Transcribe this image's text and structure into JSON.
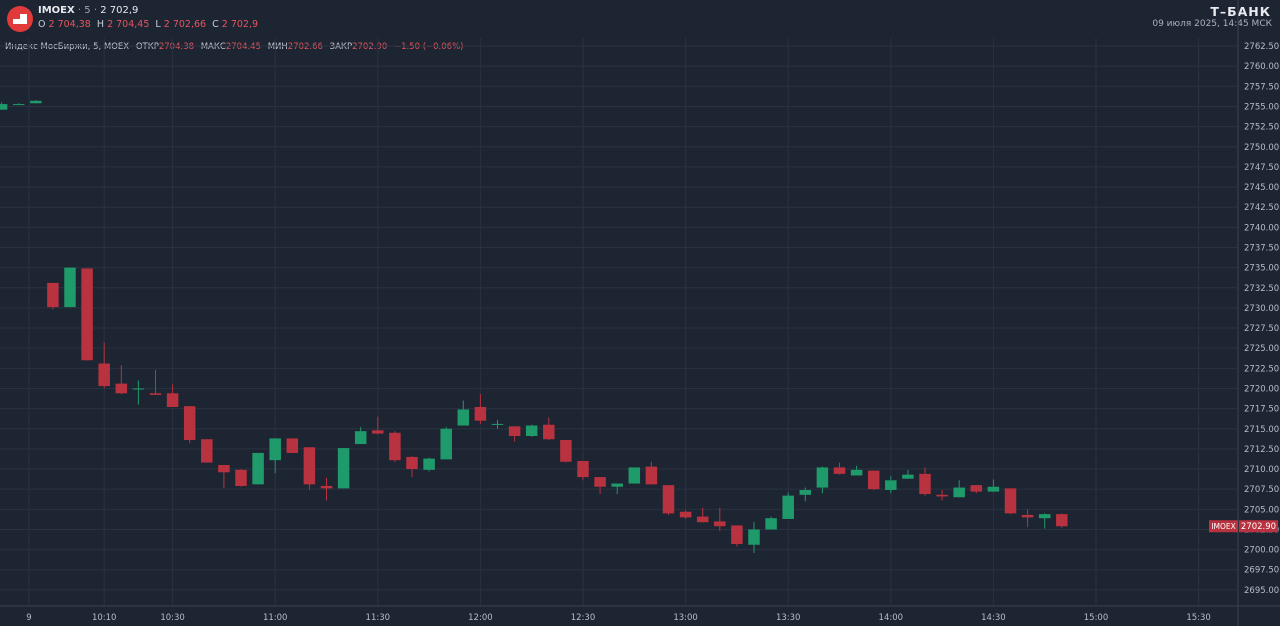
{
  "header": {
    "symbol": "IMOEX",
    "interval": "5",
    "last": "2 702,9",
    "o_label": "O",
    "o_value": "2 704,38",
    "h_label": "H",
    "h_value": "2 704,45",
    "l_label": "L",
    "l_value": "2 702,66",
    "c_label": "C",
    "c_value": "2 702,9",
    "brand": "Т–БАНК",
    "datetime": "09 июля 2025, 14:45 МСК"
  },
  "legend": {
    "name": "Индекс МосБиржи, 5, MOEX",
    "open_label": "ОТКР",
    "open_value": "2704.38",
    "high_label": "МАКС",
    "high_value": "2704.45",
    "low_label": "МИН",
    "low_value": "2702.66",
    "close_label": "ЗАКР",
    "close_value": "2702.90",
    "change": "−1.50 (−0.06%)"
  },
  "colors": {
    "background": "#1e2532",
    "grid": "#2a3140",
    "up": "#1f9a6a",
    "down": "#b8323f",
    "label_bg": "#b8323f"
  },
  "chart_data": {
    "type": "candlestick",
    "title": "",
    "xlabel": "",
    "ylabel": "",
    "ylim": [
      2693.0,
      2763.5
    ],
    "y_ticks": [
      "2762.50",
      "2760.00",
      "2757.50",
      "2755.00",
      "2752.50",
      "2750.00",
      "2747.50",
      "2745.00",
      "2742.50",
      "2740.00",
      "2737.50",
      "2735.00",
      "2732.50",
      "2730.00",
      "2727.50",
      "2725.00",
      "2722.50",
      "2720.00",
      "2717.50",
      "2715.00",
      "2712.50",
      "2710.00",
      "2707.50",
      "2705.00",
      "2702.50",
      "2700.00",
      "2697.50",
      "2695.00"
    ],
    "x_ticks": [
      {
        "label": "9",
        "index": 1.6
      },
      {
        "label": "10:10",
        "index": 6
      },
      {
        "label": "10:30",
        "index": 10
      },
      {
        "label": "11:00",
        "index": 16
      },
      {
        "label": "11:30",
        "index": 22
      },
      {
        "label": "12:00",
        "index": 28
      },
      {
        "label": "12:30",
        "index": 34
      },
      {
        "label": "13:00",
        "index": 40
      },
      {
        "label": "13:30",
        "index": 46
      },
      {
        "label": "14:00",
        "index": 52
      },
      {
        "label": "14:30",
        "index": 58
      },
      {
        "label": "15:00",
        "index": 64
      },
      {
        "label": "15:30",
        "index": 70
      }
    ],
    "price_label": {
      "symbol": "IMOEX",
      "value": "2702.90",
      "price": 2702.9
    },
    "candles": [
      {
        "o": 2754.6,
        "h": 2755.5,
        "l": 2754.6,
        "c": 2755.3
      },
      {
        "o": 2755.3,
        "h": 2755.4,
        "l": 2755.2,
        "c": 2755.3
      },
      {
        "o": 2755.4,
        "h": 2755.8,
        "l": 2755.4,
        "c": 2755.7
      },
      {
        "o": 2733.1,
        "h": 2733.1,
        "l": 2729.8,
        "c": 2730.1
      },
      {
        "o": 2730.1,
        "h": 2735.0,
        "l": 2730.1,
        "c": 2735.0
      },
      {
        "o": 2734.9,
        "h": 2734.9,
        "l": 2723.5,
        "c": 2723.5
      },
      {
        "o": 2723.1,
        "h": 2725.7,
        "l": 2720.0,
        "c": 2720.3
      },
      {
        "o": 2720.6,
        "h": 2722.9,
        "l": 2719.3,
        "c": 2719.4
      },
      {
        "o": 2719.9,
        "h": 2721.0,
        "l": 2718.0,
        "c": 2720.0
      },
      {
        "o": 2719.4,
        "h": 2722.3,
        "l": 2719.2,
        "c": 2719.2
      },
      {
        "o": 2719.4,
        "h": 2720.5,
        "l": 2717.7,
        "c": 2717.7
      },
      {
        "o": 2717.8,
        "h": 2717.8,
        "l": 2713.2,
        "c": 2713.6
      },
      {
        "o": 2713.7,
        "h": 2713.7,
        "l": 2710.8,
        "c": 2710.8
      },
      {
        "o": 2710.5,
        "h": 2710.5,
        "l": 2707.6,
        "c": 2709.6
      },
      {
        "o": 2709.9,
        "h": 2710.0,
        "l": 2707.8,
        "c": 2707.9
      },
      {
        "o": 2708.1,
        "h": 2712.0,
        "l": 2708.1,
        "c": 2712.0
      },
      {
        "o": 2711.1,
        "h": 2713.8,
        "l": 2709.5,
        "c": 2713.8
      },
      {
        "o": 2713.8,
        "h": 2713.8,
        "l": 2712.0,
        "c": 2712.0
      },
      {
        "o": 2712.7,
        "h": 2712.7,
        "l": 2707.4,
        "c": 2708.1
      },
      {
        "o": 2707.9,
        "h": 2708.9,
        "l": 2706.1,
        "c": 2707.6
      },
      {
        "o": 2707.6,
        "h": 2712.6,
        "l": 2707.6,
        "c": 2712.6
      },
      {
        "o": 2713.1,
        "h": 2715.2,
        "l": 2713.1,
        "c": 2714.7
      },
      {
        "o": 2714.8,
        "h": 2716.5,
        "l": 2714.3,
        "c": 2714.4
      },
      {
        "o": 2714.5,
        "h": 2714.7,
        "l": 2710.9,
        "c": 2711.1
      },
      {
        "o": 2711.5,
        "h": 2711.6,
        "l": 2709.0,
        "c": 2710.0
      },
      {
        "o": 2709.9,
        "h": 2711.4,
        "l": 2709.7,
        "c": 2711.3
      },
      {
        "o": 2711.2,
        "h": 2715.2,
        "l": 2711.2,
        "c": 2715.0
      },
      {
        "o": 2715.4,
        "h": 2718.5,
        "l": 2715.4,
        "c": 2717.4
      },
      {
        "o": 2717.7,
        "h": 2719.3,
        "l": 2715.6,
        "c": 2716.0
      },
      {
        "o": 2715.6,
        "h": 2716.1,
        "l": 2715.0,
        "c": 2715.6
      },
      {
        "o": 2715.3,
        "h": 2715.3,
        "l": 2713.4,
        "c": 2714.1
      },
      {
        "o": 2714.1,
        "h": 2715.5,
        "l": 2714.0,
        "c": 2715.4
      },
      {
        "o": 2715.5,
        "h": 2716.4,
        "l": 2713.6,
        "c": 2713.7
      },
      {
        "o": 2713.6,
        "h": 2713.6,
        "l": 2710.8,
        "c": 2710.9
      },
      {
        "o": 2711.0,
        "h": 2711.0,
        "l": 2708.6,
        "c": 2709.0
      },
      {
        "o": 2709.0,
        "h": 2709.0,
        "l": 2706.9,
        "c": 2707.8
      },
      {
        "o": 2707.8,
        "h": 2708.2,
        "l": 2706.9,
        "c": 2708.2
      },
      {
        "o": 2708.2,
        "h": 2710.2,
        "l": 2708.2,
        "c": 2710.2
      },
      {
        "o": 2710.3,
        "h": 2710.9,
        "l": 2708.1,
        "c": 2708.1
      },
      {
        "o": 2708.0,
        "h": 2708.0,
        "l": 2704.3,
        "c": 2704.5
      },
      {
        "o": 2704.7,
        "h": 2704.9,
        "l": 2703.8,
        "c": 2704.0
      },
      {
        "o": 2704.1,
        "h": 2705.2,
        "l": 2703.4,
        "c": 2703.4
      },
      {
        "o": 2703.5,
        "h": 2705.2,
        "l": 2702.3,
        "c": 2702.9
      },
      {
        "o": 2703.0,
        "h": 2703.0,
        "l": 2700.4,
        "c": 2700.7
      },
      {
        "o": 2700.6,
        "h": 2703.4,
        "l": 2699.6,
        "c": 2702.5
      },
      {
        "o": 2702.5,
        "h": 2704.1,
        "l": 2702.5,
        "c": 2703.9
      },
      {
        "o": 2703.8,
        "h": 2707.1,
        "l": 2703.8,
        "c": 2706.7
      },
      {
        "o": 2706.8,
        "h": 2707.7,
        "l": 2706.0,
        "c": 2707.4
      },
      {
        "o": 2707.7,
        "h": 2710.3,
        "l": 2707.0,
        "c": 2710.2
      },
      {
        "o": 2710.2,
        "h": 2710.8,
        "l": 2709.3,
        "c": 2709.4
      },
      {
        "o": 2709.2,
        "h": 2710.4,
        "l": 2709.2,
        "c": 2709.9
      },
      {
        "o": 2709.8,
        "h": 2709.8,
        "l": 2707.4,
        "c": 2707.5
      },
      {
        "o": 2707.4,
        "h": 2709.1,
        "l": 2707.0,
        "c": 2708.6
      },
      {
        "o": 2708.8,
        "h": 2709.9,
        "l": 2708.8,
        "c": 2709.3
      },
      {
        "o": 2709.4,
        "h": 2710.2,
        "l": 2706.7,
        "c": 2706.9
      },
      {
        "o": 2706.8,
        "h": 2707.4,
        "l": 2706.1,
        "c": 2706.6
      },
      {
        "o": 2706.5,
        "h": 2708.6,
        "l": 2706.5,
        "c": 2707.7
      },
      {
        "o": 2708.0,
        "h": 2708.0,
        "l": 2707.0,
        "c": 2707.2
      },
      {
        "o": 2707.2,
        "h": 2708.7,
        "l": 2707.2,
        "c": 2707.8
      },
      {
        "o": 2707.6,
        "h": 2707.6,
        "l": 2704.4,
        "c": 2704.5
      },
      {
        "o": 2704.3,
        "h": 2705.0,
        "l": 2702.8,
        "c": 2704.0
      },
      {
        "o": 2703.9,
        "h": 2704.5,
        "l": 2702.6,
        "c": 2704.4
      },
      {
        "o": 2704.4,
        "h": 2704.5,
        "l": 2702.7,
        "c": 2702.9
      }
    ]
  }
}
